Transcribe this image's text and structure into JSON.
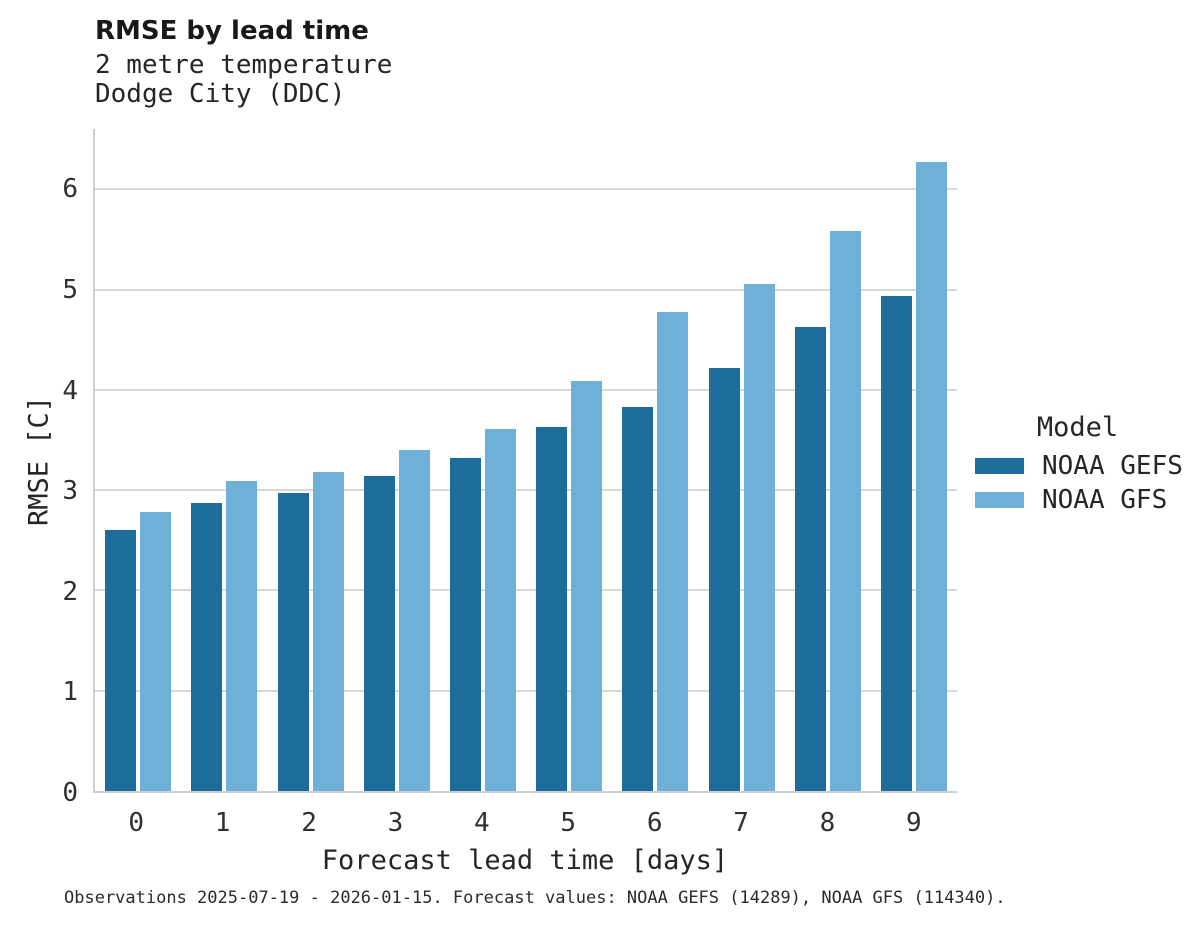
{
  "chart_data": {
    "type": "bar",
    "title": "RMSE by lead time",
    "subtitle_lines": [
      "2 metre temperature",
      "Dodge City (DDC)"
    ],
    "categories": [
      "0",
      "1",
      "2",
      "3",
      "4",
      "5",
      "6",
      "7",
      "8",
      "9"
    ],
    "series": [
      {
        "name": "NOAA GEFS",
        "color": "#1C6D9C",
        "values": [
          2.6,
          2.87,
          2.97,
          3.14,
          3.32,
          3.63,
          3.83,
          4.22,
          4.63,
          4.94
        ]
      },
      {
        "name": "NOAA GFS",
        "color": "#6FB0D8",
        "values": [
          2.78,
          3.09,
          3.18,
          3.4,
          3.61,
          4.09,
          4.78,
          5.05,
          5.58,
          6.27
        ]
      }
    ],
    "xlabel": "Forecast lead time [days]",
    "ylabel": "RMSE [C]",
    "ylim": [
      0,
      6.6
    ],
    "yticks": [
      0,
      1,
      2,
      3,
      4,
      5,
      6
    ],
    "grid": "horizontal-only",
    "legend": {
      "title": "Model",
      "position": "right-middle"
    },
    "caption": "Observations 2025-07-19 - 2026-01-15. Forecast values: NOAA GEFS (14289), NOAA GFS (114340).",
    "colors": {
      "gefs_dark_blue": "#1C6D9C",
      "gfs_light_blue": "#6FB0D8",
      "gridline_gray": "#D8D8D8",
      "axis_gray": "#CFCFCF"
    }
  }
}
